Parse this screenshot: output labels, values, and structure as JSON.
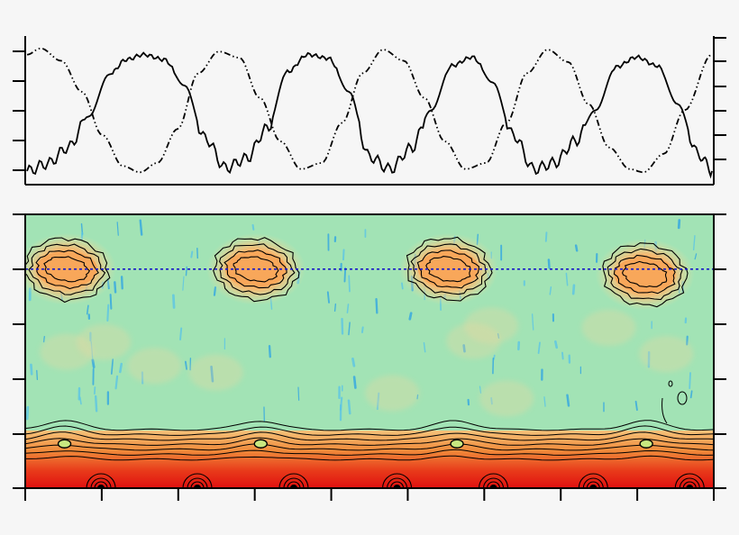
{
  "chart_data": [
    {
      "type": "line",
      "title": "",
      "xlabel": "",
      "ylabel": "",
      "grid": false,
      "legend": "none",
      "xlim": [
        0,
        1
      ],
      "ylim": [
        -1.2,
        1.2
      ],
      "series": [
        {
          "style": "solid",
          "color": "#000000",
          "points": [
            [
              0.0,
              -0.98
            ],
            [
              0.03,
              -0.86
            ],
            [
              0.06,
              -0.6
            ],
            [
              0.09,
              -0.1
            ],
            [
              0.12,
              0.58
            ],
            [
              0.145,
              0.82
            ],
            [
              0.17,
              0.9
            ],
            [
              0.2,
              0.82
            ],
            [
              0.23,
              0.4
            ],
            [
              0.26,
              -0.45
            ],
            [
              0.29,
              -0.93
            ],
            [
              0.32,
              -0.78
            ],
            [
              0.35,
              -0.3
            ],
            [
              0.38,
              0.62
            ],
            [
              0.41,
              0.9
            ],
            [
              0.44,
              0.84
            ],
            [
              0.47,
              0.3
            ],
            [
              0.5,
              -0.75
            ],
            [
              0.53,
              -0.95
            ],
            [
              0.56,
              -0.62
            ],
            [
              0.59,
              0.0
            ],
            [
              0.62,
              0.72
            ],
            [
              0.65,
              0.86
            ],
            [
              0.68,
              0.45
            ],
            [
              0.71,
              -0.4
            ],
            [
              0.74,
              -0.95
            ],
            [
              0.77,
              -0.85
            ],
            [
              0.8,
              -0.5
            ],
            [
              0.83,
              0.0
            ],
            [
              0.86,
              0.7
            ],
            [
              0.89,
              0.86
            ],
            [
              0.92,
              0.72
            ],
            [
              0.95,
              0.1
            ],
            [
              0.98,
              -0.7
            ],
            [
              1.0,
              -0.98
            ]
          ]
        },
        {
          "style": "dash-dot",
          "color": "#000000",
          "points": [
            [
              0.0,
              0.9
            ],
            [
              0.02,
              1.0
            ],
            [
              0.05,
              0.8
            ],
            [
              0.08,
              0.3
            ],
            [
              0.11,
              -0.4
            ],
            [
              0.14,
              -0.9
            ],
            [
              0.165,
              -1.0
            ],
            [
              0.19,
              -0.85
            ],
            [
              0.22,
              -0.3
            ],
            [
              0.25,
              0.6
            ],
            [
              0.28,
              0.95
            ],
            [
              0.31,
              0.85
            ],
            [
              0.34,
              0.2
            ],
            [
              0.37,
              -0.5
            ],
            [
              0.4,
              -0.95
            ],
            [
              0.43,
              -0.85
            ],
            [
              0.46,
              -0.2
            ],
            [
              0.49,
              0.6
            ],
            [
              0.52,
              0.98
            ],
            [
              0.55,
              0.8
            ],
            [
              0.58,
              0.2
            ],
            [
              0.61,
              -0.5
            ],
            [
              0.64,
              -0.95
            ],
            [
              0.67,
              -0.85
            ],
            [
              0.7,
              -0.2
            ],
            [
              0.73,
              0.6
            ],
            [
              0.76,
              0.98
            ],
            [
              0.79,
              0.78
            ],
            [
              0.82,
              0.1
            ],
            [
              0.85,
              -0.6
            ],
            [
              0.88,
              -0.95
            ],
            [
              0.9,
              -1.0
            ],
            [
              0.93,
              -0.7
            ],
            [
              0.96,
              0.0
            ],
            [
              1.0,
              0.9
            ]
          ]
        }
      ]
    },
    {
      "type": "heatmap",
      "title": "",
      "xlabel": "",
      "ylabel": "",
      "colormap": "jet",
      "reference_line": {
        "style": "dotted",
        "color": "#1a1ac8",
        "position": 0.2
      },
      "contour_color": "#000000",
      "blobs": [
        {
          "x": 0.06,
          "y": 0.2
        },
        {
          "x": 0.335,
          "y": 0.2
        },
        {
          "x": 0.615,
          "y": 0.2
        },
        {
          "x": 0.9,
          "y": 0.22
        }
      ],
      "base_band": {
        "from": 0.78,
        "to": 1.0
      }
    }
  ]
}
